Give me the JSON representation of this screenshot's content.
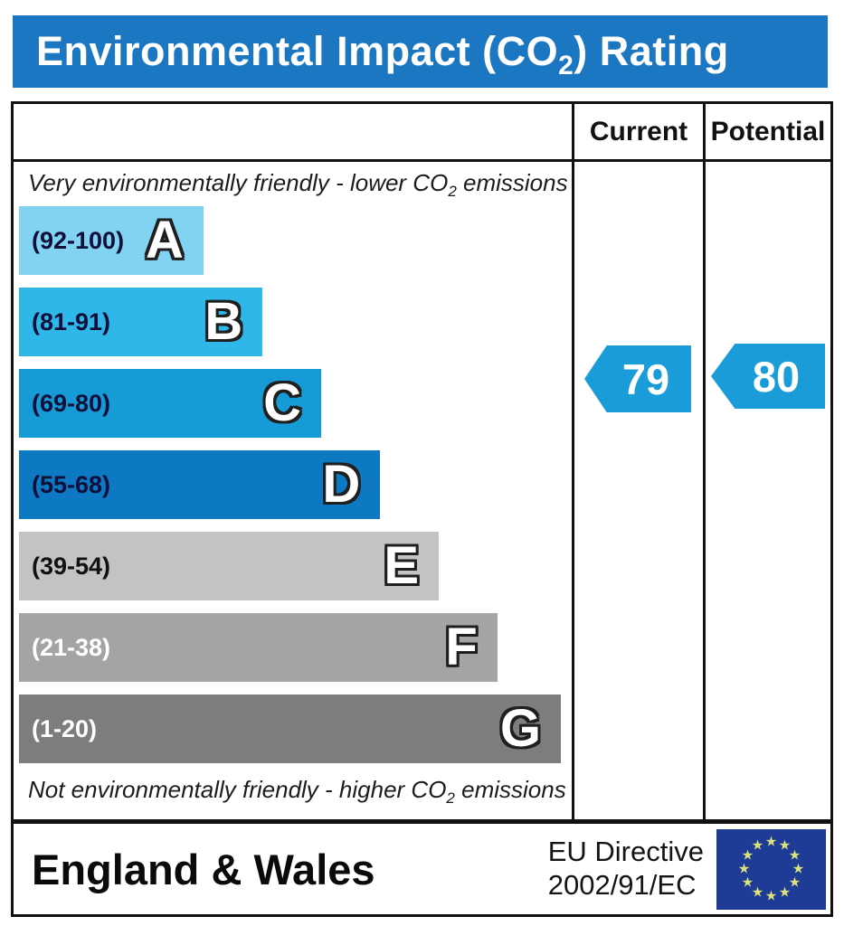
{
  "title": {
    "pre": "Environmental Impact (CO",
    "sub": "2",
    "post": ") Rating"
  },
  "header": {
    "current": "Current",
    "potential": "Potential"
  },
  "captions": {
    "top_pre": "Very environmentally friendly - lower CO",
    "top_sub": "2",
    "top_post": " emissions",
    "bottom_pre": "Not environmentally friendly - higher CO",
    "bottom_sub": "2",
    "bottom_post": " emissions"
  },
  "footer": {
    "region": "England & Wales",
    "directive_line1": "EU Directive",
    "directive_line2": "2002/91/EC",
    "eu_flag_stars": 12
  },
  "colors": {
    "title_bar": "#1b77c1",
    "arrow": "#1a9cd9",
    "eu_flag_bg": "#1e3c96",
    "eu_star": "#dbe27b",
    "border": "#111111"
  },
  "chart_data": {
    "type": "bar",
    "subtype": "epc-co2-rating-bands",
    "title": "Environmental Impact (CO2) Rating",
    "columns": [
      "Current",
      "Potential"
    ],
    "bands": [
      {
        "letter": "A",
        "range_label": "(92-100)",
        "range_min": 92,
        "range_max": 100,
        "width_pct": 33.7,
        "color": "#82d2f2",
        "label_color": "#10103a"
      },
      {
        "letter": "B",
        "range_label": "(81-91)",
        "range_min": 81,
        "range_max": 91,
        "width_pct": 44.5,
        "color": "#30b7ea",
        "label_color": "#10103a"
      },
      {
        "letter": "C",
        "range_label": "(69-80)",
        "range_min": 69,
        "range_max": 80,
        "width_pct": 55.2,
        "color": "#169bd7",
        "label_color": "#10103a"
      },
      {
        "letter": "D",
        "range_label": "(55-68)",
        "range_min": 55,
        "range_max": 68,
        "width_pct": 66.0,
        "color": "#0d79c2",
        "label_color": "#10103a"
      },
      {
        "letter": "E",
        "range_label": "(39-54)",
        "range_min": 39,
        "range_max": 54,
        "width_pct": 76.7,
        "color": "#c3c3c3",
        "label_color": "#111111"
      },
      {
        "letter": "F",
        "range_label": "(21-38)",
        "range_min": 21,
        "range_max": 38,
        "width_pct": 87.4,
        "color": "#a4a4a4",
        "label_color": "#ffffff"
      },
      {
        "letter": "G",
        "range_label": "(1-20)",
        "range_min": 1,
        "range_max": 20,
        "width_pct": 99.0,
        "color": "#7d7d7d",
        "label_color": "#ffffff"
      }
    ],
    "current": {
      "value": 79,
      "band": "C"
    },
    "potential": {
      "value": 80,
      "band": "C"
    }
  }
}
